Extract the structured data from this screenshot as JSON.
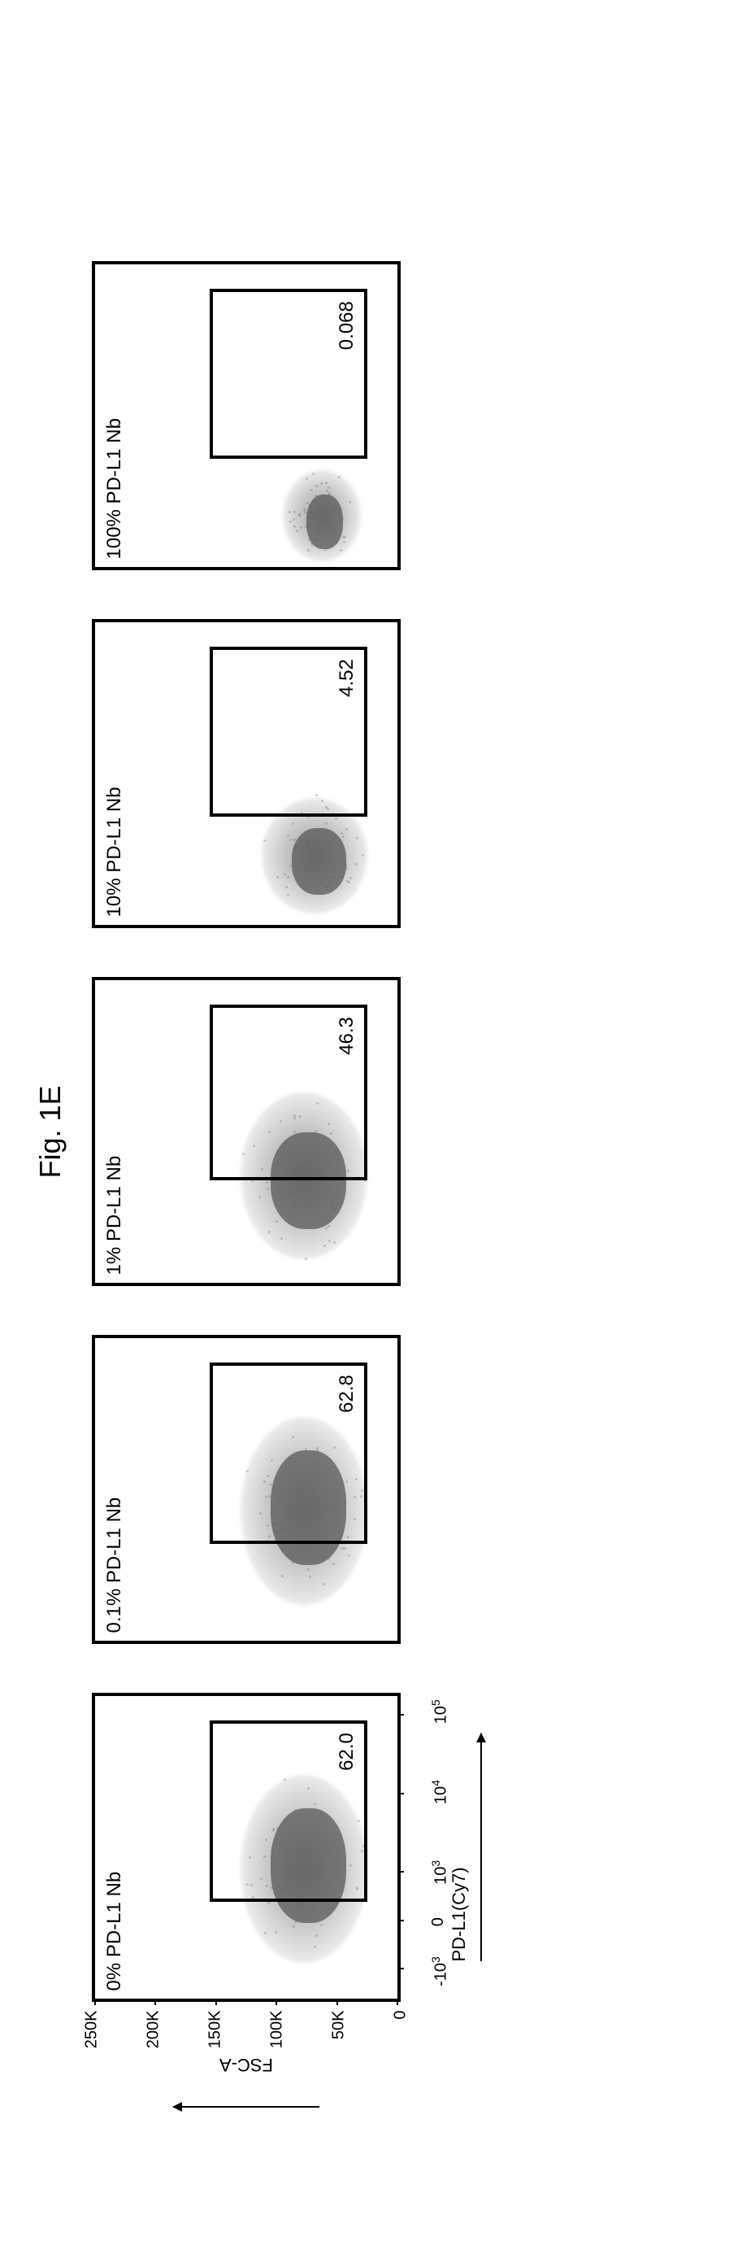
{
  "figure_label": "Fig. 1E",
  "y_axis": {
    "title": "FSC-A",
    "ticks": [
      {
        "label": "0",
        "pos_pct": 100
      },
      {
        "label": "50K",
        "pos_pct": 80
      },
      {
        "label": "100K",
        "pos_pct": 60
      },
      {
        "label": "150K",
        "pos_pct": 40
      },
      {
        "label": "200K",
        "pos_pct": 20
      },
      {
        "label": "250K",
        "pos_pct": 0
      }
    ]
  },
  "x_axis": {
    "title": "PD-L1(Cy7)",
    "ticks": [
      {
        "label_base": "-10",
        "label_sup": "3",
        "pos_pct": 10
      },
      {
        "label_base": "0",
        "label_sup": "",
        "pos_pct": 26
      },
      {
        "label_base": "10",
        "label_sup": "3",
        "pos_pct": 42
      },
      {
        "label_base": "10",
        "label_sup": "4",
        "pos_pct": 68
      },
      {
        "label_base": "10",
        "label_sup": "5",
        "pos_pct": 94
      }
    ]
  },
  "plots": [
    {
      "title": "0% PD-L1 Nb",
      "gate_value": "62.0",
      "gate": {
        "left_pct": 32,
        "top_pct": 38,
        "width_pct": 60,
        "height_pct": 52
      },
      "value_pos": {
        "right_pct": 12,
        "bottom_pct": 13
      },
      "cloud": {
        "left_pct": 12,
        "top_pct": 48,
        "width_pct": 62,
        "height_pct": 42
      },
      "dense": {
        "left_pct": 25,
        "top_pct": 58,
        "width_pct": 38,
        "height_pct": 25
      },
      "show_y_axis": true,
      "show_x_axis": true
    },
    {
      "title": "0.1% PD-L1 Nb",
      "gate_value": "62.8",
      "gate": {
        "left_pct": 32,
        "top_pct": 38,
        "width_pct": 60,
        "height_pct": 52
      },
      "value_pos": {
        "right_pct": 12,
        "bottom_pct": 13
      },
      "cloud": {
        "left_pct": 12,
        "top_pct": 48,
        "width_pct": 62,
        "height_pct": 42
      },
      "dense": {
        "left_pct": 25,
        "top_pct": 58,
        "width_pct": 38,
        "height_pct": 25
      },
      "show_y_axis": false,
      "show_x_axis": false
    },
    {
      "title": "1% PD-L1 Nb",
      "gate_value": "46.3",
      "gate": {
        "left_pct": 34,
        "top_pct": 38,
        "width_pct": 58,
        "height_pct": 52
      },
      "value_pos": {
        "right_pct": 12,
        "bottom_pct": 13
      },
      "cloud": {
        "left_pct": 8,
        "top_pct": 48,
        "width_pct": 55,
        "height_pct": 42
      },
      "dense": {
        "left_pct": 18,
        "top_pct": 58,
        "width_pct": 32,
        "height_pct": 25
      },
      "show_y_axis": false,
      "show_x_axis": false
    },
    {
      "title": "10% PD-L1 Nb",
      "gate_value": "4.52",
      "gate": {
        "left_pct": 36,
        "top_pct": 38,
        "width_pct": 56,
        "height_pct": 52
      },
      "value_pos": {
        "right_pct": 12,
        "bottom_pct": 13
      },
      "cloud": {
        "left_pct": 4,
        "top_pct": 55,
        "width_pct": 38,
        "height_pct": 35
      },
      "dense": {
        "left_pct": 10,
        "top_pct": 65,
        "width_pct": 22,
        "height_pct": 18
      },
      "show_y_axis": false,
      "show_x_axis": false
    },
    {
      "title": "100% PD-L1 Nb",
      "gate_value": "0.068",
      "gate": {
        "left_pct": 36,
        "top_pct": 38,
        "width_pct": 56,
        "height_pct": 52
      },
      "value_pos": {
        "right_pct": 12,
        "bottom_pct": 13
      },
      "cloud": {
        "left_pct": 2,
        "top_pct": 62,
        "width_pct": 30,
        "height_pct": 26
      },
      "dense": {
        "left_pct": 6,
        "top_pct": 70,
        "width_pct": 18,
        "height_pct": 12
      },
      "show_y_axis": false,
      "show_x_axis": false
    }
  ],
  "colors": {
    "border": "#000000",
    "scatter": "#6a6a6a",
    "background": "#ffffff"
  }
}
